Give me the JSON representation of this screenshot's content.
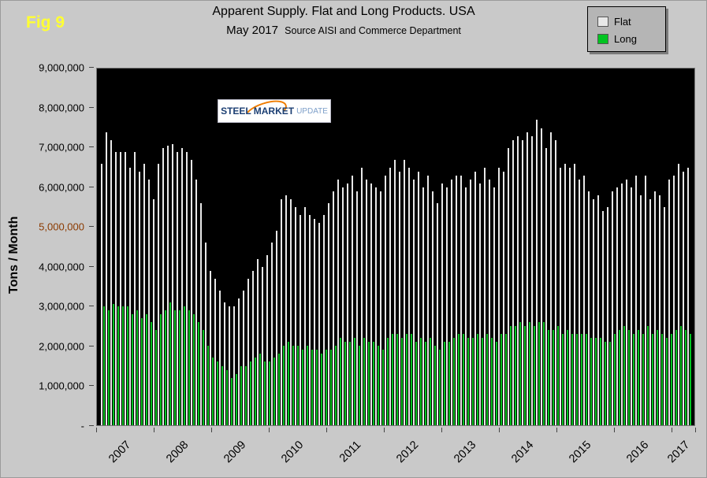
{
  "fig_label": "Fig 9",
  "title": "Apparent Supply. Flat and Long Products. USA",
  "subtitle_main": "May 2017",
  "subtitle_source": "Source AISI and Commerce Department",
  "y_axis_title": "Tons / Month",
  "logo": {
    "steel": "STEEL",
    "market": "MARKET",
    "update": "UPDATE"
  },
  "legend": [
    {
      "label": "Flat",
      "color": "#e8e8e8"
    },
    {
      "label": "Long",
      "color": "#00c421"
    }
  ],
  "colors": {
    "background": "#c9c9c9",
    "plot_background": "#000000",
    "fig_label": "#ffff33",
    "flat_bar": "#e8e8e8",
    "long_bar": "#00c421",
    "highlight_tick": "#8b3a00"
  },
  "chart_data": {
    "type": "bar",
    "title": "Apparent Supply. Flat and Long Products. USA — May 2017",
    "xlabel": "",
    "ylabel": "Tons / Month",
    "ylim": [
      0,
      9000000
    ],
    "grid": false,
    "legend_position": "top-right",
    "x_year_labels": [
      "2007",
      "2008",
      "2009",
      "2010",
      "2011",
      "2012",
      "2013",
      "2014",
      "2015",
      "2016",
      "2017"
    ],
    "months_per_year": [
      12,
      12,
      12,
      12,
      12,
      12,
      12,
      12,
      12,
      12,
      5
    ],
    "y_ticks": [
      {
        "label": "9,000,000",
        "value": 9000000,
        "color": "#000000"
      },
      {
        "label": "8,000,000",
        "value": 8000000,
        "color": "#000000"
      },
      {
        "label": "7,000,000",
        "value": 7000000,
        "color": "#000000"
      },
      {
        "label": "6,000,000",
        "value": 6000000,
        "color": "#000000"
      },
      {
        "label": "5,000,000",
        "value": 5000000,
        "color": "#8b3a00"
      },
      {
        "label": "4,000,000",
        "value": 4000000,
        "color": "#000000"
      },
      {
        "label": "3,000,000",
        "value": 3000000,
        "color": "#000000"
      },
      {
        "label": "2,000,000",
        "value": 2000000,
        "color": "#000000"
      },
      {
        "label": "1,000,000",
        "value": 1000000,
        "color": "#000000"
      },
      {
        "label": "-",
        "value": 0,
        "color": "#000000"
      }
    ],
    "series": [
      {
        "name": "Flat",
        "color": "#e8e8e8",
        "values": [
          6600000,
          7400000,
          7200000,
          6900000,
          6900000,
          6900000,
          6500000,
          6900000,
          6400000,
          6600000,
          6200000,
          5700000,
          6600000,
          7000000,
          7050000,
          7100000,
          6900000,
          7000000,
          6900000,
          6700000,
          6200000,
          5600000,
          4600000,
          3900000,
          3700000,
          3400000,
          3100000,
          3000000,
          3000000,
          3200000,
          3400000,
          3700000,
          3900000,
          4200000,
          4000000,
          4300000,
          4600000,
          4900000,
          5700000,
          5800000,
          5700000,
          5500000,
          5300000,
          5500000,
          5300000,
          5200000,
          5100000,
          5300000,
          5600000,
          5900000,
          6200000,
          6000000,
          6100000,
          6300000,
          5900000,
          6500000,
          6200000,
          6100000,
          6000000,
          5900000,
          6300000,
          6500000,
          6700000,
          6400000,
          6700000,
          6500000,
          6200000,
          6400000,
          6000000,
          6300000,
          5900000,
          5600000,
          6100000,
          6000000,
          6200000,
          6300000,
          6300000,
          6000000,
          6200000,
          6400000,
          6100000,
          6500000,
          6200000,
          6000000,
          6500000,
          6400000,
          7000000,
          7200000,
          7300000,
          7200000,
          7400000,
          7300000,
          7700000,
          7500000,
          7000000,
          7400000,
          7200000,
          6500000,
          6600000,
          6500000,
          6600000,
          6200000,
          6300000,
          5900000,
          5700000,
          5800000,
          5400000,
          5500000,
          5900000,
          6000000,
          6100000,
          6200000,
          6000000,
          6300000,
          5800000,
          6300000,
          5700000,
          5900000,
          5800000,
          5500000,
          6200000,
          6300000,
          6600000,
          6400000,
          6500000
        ]
      },
      {
        "name": "Long",
        "color": "#00c421",
        "values": [
          3000000,
          2900000,
          3050000,
          3000000,
          3000000,
          3000000,
          2800000,
          2900000,
          2700000,
          2800000,
          2600000,
          2400000,
          2800000,
          2900000,
          3100000,
          2900000,
          2900000,
          3000000,
          2900000,
          2800000,
          2600000,
          2400000,
          2000000,
          1700000,
          1600000,
          1500000,
          1400000,
          1200000,
          1300000,
          1500000,
          1500000,
          1600000,
          1700000,
          1800000,
          1600000,
          1600000,
          1700000,
          1800000,
          2000000,
          2100000,
          2000000,
          2000000,
          1900000,
          2000000,
          1900000,
          1900000,
          1800000,
          1900000,
          1900000,
          2000000,
          2200000,
          2100000,
          2100000,
          2200000,
          2000000,
          2200000,
          2100000,
          2100000,
          2000000,
          1900000,
          2200000,
          2300000,
          2300000,
          2200000,
          2300000,
          2300000,
          2100000,
          2200000,
          2100000,
          2200000,
          2000000,
          1900000,
          2100000,
          2100000,
          2200000,
          2300000,
          2300000,
          2200000,
          2200000,
          2300000,
          2200000,
          2300000,
          2200000,
          2100000,
          2300000,
          2300000,
          2500000,
          2500000,
          2600000,
          2500000,
          2600000,
          2500000,
          2600000,
          2600000,
          2400000,
          2400000,
          2500000,
          2300000,
          2400000,
          2300000,
          2300000,
          2300000,
          2300000,
          2200000,
          2200000,
          2200000,
          2100000,
          2100000,
          2300000,
          2400000,
          2500000,
          2400000,
          2300000,
          2400000,
          2300000,
          2500000,
          2300000,
          2400000,
          2300000,
          2200000,
          2300000,
          2400000,
          2500000,
          2400000,
          2300000
        ]
      }
    ]
  }
}
